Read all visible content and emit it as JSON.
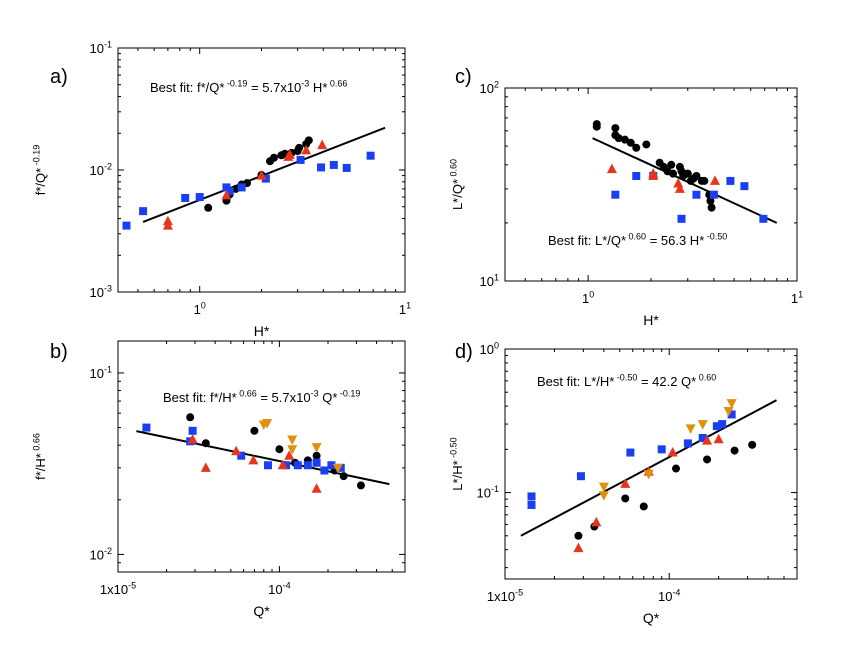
{
  "colors": {
    "black": "#000000",
    "blue": "#1a3ff0",
    "red": "#e8341c",
    "orange": "#e0900a"
  },
  "chart_data": [
    {
      "id": "a",
      "type": "scatter",
      "panel_label": "a)",
      "xscale": "log",
      "yscale": "log",
      "xlim": [
        0.4,
        10
      ],
      "ylim": [
        0.001,
        0.1
      ],
      "xticks": [
        {
          "v": 1,
          "m": "1",
          "e": "0"
        },
        {
          "v": 10,
          "m": "1",
          "e": "1"
        }
      ],
      "yticks": [
        {
          "v": 0.001,
          "m": "10",
          "e": "-3"
        },
        {
          "v": 0.01,
          "m": "10",
          "e": "-2"
        },
        {
          "v": 0.1,
          "m": "10",
          "e": "-1"
        }
      ],
      "xlabel": "H*",
      "ylabel_base": "f*/Q*",
      "ylabel_exp": " -0.19",
      "annotation": {
        "prefix": "Best fit: f*/Q*",
        "e1": " -0.19",
        "mid": " = 5.7x10",
        "e2": "-3",
        "mid2": " H*",
        "e3": " 0.66",
        "suffix": ""
      },
      "fit_line": [
        [
          0.53,
          0.00375
        ],
        [
          8.0,
          0.0222
        ]
      ],
      "series": [
        {
          "name": "black",
          "marker": "circle",
          "color": "black",
          "points": [
            [
              1.1,
              0.0049
            ],
            [
              1.35,
              0.0056
            ],
            [
              1.4,
              0.0063
            ],
            [
              1.5,
              0.007
            ],
            [
              1.6,
              0.0076
            ],
            [
              1.7,
              0.0078
            ],
            [
              2.0,
              0.0091
            ],
            [
              2.2,
              0.0118
            ],
            [
              2.3,
              0.0126
            ],
            [
              2.5,
              0.0132
            ],
            [
              2.6,
              0.0136
            ],
            [
              2.8,
              0.0138
            ],
            [
              3.0,
              0.0143
            ],
            [
              3.05,
              0.0152
            ],
            [
              3.3,
              0.0163
            ],
            [
              3.4,
              0.0175
            ]
          ]
        },
        {
          "name": "blue",
          "marker": "square",
          "color": "blue",
          "points": [
            [
              0.44,
              0.0035
            ],
            [
              0.53,
              0.0046
            ],
            [
              0.85,
              0.0059
            ],
            [
              1.0,
              0.006
            ],
            [
              1.35,
              0.0072
            ],
            [
              1.4,
              0.0067
            ],
            [
              1.6,
              0.0072
            ],
            [
              2.1,
              0.0085
            ],
            [
              3.1,
              0.0121
            ],
            [
              3.9,
              0.0105
            ],
            [
              4.5,
              0.011
            ],
            [
              5.2,
              0.0104
            ],
            [
              6.8,
              0.0131
            ]
          ]
        },
        {
          "name": "red",
          "marker": "triangle-up",
          "color": "red",
          "points": [
            [
              0.7,
              0.0035
            ],
            [
              0.7,
              0.0038
            ],
            [
              1.35,
              0.0062
            ],
            [
              2.0,
              0.009
            ],
            [
              2.7,
              0.0128
            ],
            [
              2.75,
              0.0133
            ],
            [
              3.3,
              0.0145
            ],
            [
              3.95,
              0.016
            ]
          ]
        }
      ]
    },
    {
      "id": "c",
      "type": "scatter",
      "panel_label": "c)",
      "xscale": "log",
      "yscale": "log",
      "xlim": [
        0.4,
        10
      ],
      "ylim": [
        10,
        100
      ],
      "xticks": [
        {
          "v": 1,
          "m": "1",
          "e": "0"
        },
        {
          "v": 10,
          "m": "1",
          "e": "1"
        }
      ],
      "yticks": [
        {
          "v": 10,
          "m": "10",
          "e": "1"
        },
        {
          "v": 100,
          "m": "10",
          "e": "2"
        }
      ],
      "xlabel": "H*",
      "ylabel_base": "L*/Q*",
      "ylabel_exp": " 0.60",
      "annotation": {
        "prefix": "Best fit: L*/Q*",
        "e1": " 0.60",
        "mid": " = 56.3 H*",
        "e2": " -0.50",
        "mid2": "",
        "e3": "",
        "suffix": ""
      },
      "fit_line": [
        [
          1.05,
          55.0
        ],
        [
          8.0,
          20.0
        ]
      ],
      "series": [
        {
          "name": "black",
          "marker": "circle",
          "color": "black",
          "points": [
            [
              1.1,
              65
            ],
            [
              1.1,
              63
            ],
            [
              1.35,
              62
            ],
            [
              1.35,
              57
            ],
            [
              1.4,
              55
            ],
            [
              1.5,
              54
            ],
            [
              1.6,
              52
            ],
            [
              1.7,
              49
            ],
            [
              1.9,
              51
            ],
            [
              2.2,
              41
            ],
            [
              2.3,
              39
            ],
            [
              2.4,
              37
            ],
            [
              2.5,
              40
            ],
            [
              2.55,
              36
            ],
            [
              2.75,
              39
            ],
            [
              2.8,
              37
            ],
            [
              2.85,
              35
            ],
            [
              3.0,
              36
            ],
            [
              3.1,
              33
            ],
            [
              3.2,
              34
            ],
            [
              3.3,
              35
            ],
            [
              3.5,
              33
            ],
            [
              3.6,
              33
            ],
            [
              3.8,
              28
            ],
            [
              3.85,
              26
            ],
            [
              3.9,
              24
            ]
          ]
        },
        {
          "name": "blue",
          "marker": "square",
          "color": "blue",
          "points": [
            [
              1.35,
              28
            ],
            [
              1.7,
              35
            ],
            [
              2.05,
              35
            ],
            [
              2.8,
              21
            ],
            [
              3.3,
              28
            ],
            [
              4.0,
              28
            ],
            [
              4.8,
              33
            ],
            [
              5.6,
              31
            ],
            [
              6.9,
              21
            ]
          ]
        },
        {
          "name": "red",
          "marker": "triangle-up",
          "color": "red",
          "points": [
            [
              1.3,
              38
            ],
            [
              2.05,
              36
            ],
            [
              2.05,
              35
            ],
            [
              2.7,
              32
            ],
            [
              2.75,
              30
            ],
            [
              4.05,
              33
            ]
          ]
        }
      ]
    },
    {
      "id": "b",
      "type": "scatter",
      "panel_label": "b)",
      "xscale": "log",
      "yscale": "log",
      "xlim": [
        1e-05,
        0.0006
      ],
      "ylim": [
        0.008,
        0.15
      ],
      "xticks": [
        {
          "v": 1e-05,
          "m": "1x10",
          "e": "-5"
        },
        {
          "v": 0.0001,
          "m": "10",
          "e": "-4"
        }
      ],
      "yticks": [
        {
          "v": 0.01,
          "m": "10",
          "e": "-2"
        },
        {
          "v": 0.1,
          "m": "10",
          "e": "-1"
        }
      ],
      "xlabel": "Q*",
      "ylabel_base": "f*/H*",
      "ylabel_exp": " 0.66",
      "annotation": {
        "prefix": "Best fit: f*/H*",
        "e1": " 0.66",
        "mid": " = 5.7x10",
        "e2": "-3",
        "mid2": " Q*",
        "e3": " -0.19",
        "suffix": ""
      },
      "fit_line": [
        [
          1.3e-05,
          0.0478
        ],
        [
          0.00048,
          0.0244
        ]
      ],
      "series": [
        {
          "name": "black",
          "marker": "circle",
          "color": "black",
          "points": [
            [
              2.8e-05,
              0.057
            ],
            [
              3.5e-05,
              0.041
            ],
            [
              7e-05,
              0.048
            ],
            [
              0.0001,
              0.038
            ],
            [
              0.000125,
              0.032
            ],
            [
              0.00015,
              0.033
            ],
            [
              0.00017,
              0.035
            ],
            [
              0.00022,
              0.029
            ],
            [
              0.00025,
              0.027
            ],
            [
              0.00032,
              0.024
            ]
          ]
        },
        {
          "name": "blue",
          "marker": "square",
          "color": "blue",
          "points": [
            [
              1.5e-05,
              0.05
            ],
            [
              2.8e-05,
              0.042
            ],
            [
              2.9e-05,
              0.048
            ],
            [
              5.8e-05,
              0.035
            ],
            [
              8.5e-05,
              0.031
            ],
            [
              0.00011,
              0.031
            ],
            [
              0.00013,
              0.031
            ],
            [
              0.00015,
              0.031
            ],
            [
              0.00017,
              0.032
            ],
            [
              0.00019,
              0.029
            ],
            [
              0.00021,
              0.031
            ],
            [
              0.00024,
              0.03
            ]
          ]
        },
        {
          "name": "red",
          "marker": "triangle-up",
          "color": "red",
          "points": [
            [
              2.9e-05,
              0.043
            ],
            [
              3.5e-05,
              0.03
            ],
            [
              5.4e-05,
              0.037
            ],
            [
              6.9e-05,
              0.033
            ],
            [
              0.000105,
              0.031
            ],
            [
              0.000115,
              0.035
            ],
            [
              0.00017,
              0.023
            ]
          ]
        },
        {
          "name": "orange",
          "marker": "triangle-down",
          "color": "orange",
          "points": [
            [
              8e-05,
              0.052
            ],
            [
              8.4e-05,
              0.053
            ],
            [
              0.00012,
              0.043
            ],
            [
              0.00012,
              0.038
            ],
            [
              0.00017,
              0.039
            ],
            [
              0.00023,
              0.03
            ]
          ]
        }
      ]
    },
    {
      "id": "d",
      "type": "scatter",
      "panel_label": "d)",
      "xscale": "log",
      "yscale": "log",
      "xlim": [
        1e-05,
        0.0006
      ],
      "ylim": [
        0.025,
        1
      ],
      "xticks": [
        {
          "v": 1e-05,
          "m": "1x10",
          "e": "-5"
        },
        {
          "v": 0.0001,
          "m": "10",
          "e": "-4"
        }
      ],
      "yticks": [
        {
          "v": 0.1,
          "m": "10",
          "e": "-1"
        },
        {
          "v": 1,
          "m": "10",
          "e": "0"
        }
      ],
      "xlabel": "Q*",
      "ylabel_base": "L*/H*",
      "ylabel_exp": " -0.50",
      "annotation": {
        "prefix": "Best fit: L*/H*",
        "e1": " -0.50",
        "mid": " = 42.2 Q*",
        "e2": " 0.60",
        "mid2": "",
        "e3": "",
        "suffix": ""
      },
      "fit_line": [
        [
          1.25e-05,
          0.05
        ],
        [
          0.00045,
          0.44
        ]
      ],
      "series": [
        {
          "name": "black",
          "marker": "circle",
          "color": "black",
          "points": [
            [
              2.8e-05,
              0.05
            ],
            [
              3.5e-05,
              0.058
            ],
            [
              5.4e-05,
              0.091
            ],
            [
              7e-05,
              0.08
            ],
            [
              0.00011,
              0.147
            ],
            [
              0.00017,
              0.17
            ],
            [
              0.00025,
              0.196
            ],
            [
              0.00032,
              0.215
            ]
          ]
        },
        {
          "name": "blue",
          "marker": "square",
          "color": "blue",
          "points": [
            [
              1.45e-05,
              0.082
            ],
            [
              1.45e-05,
              0.094
            ],
            [
              2.9e-05,
              0.13
            ],
            [
              5.8e-05,
              0.19
            ],
            [
              9e-05,
              0.2
            ],
            [
              0.00013,
              0.22
            ],
            [
              0.00016,
              0.24
            ],
            [
              0.000195,
              0.29
            ],
            [
              0.00021,
              0.3
            ],
            [
              0.00024,
              0.35
            ]
          ]
        },
        {
          "name": "red",
          "marker": "triangle-up",
          "color": "red",
          "points": [
            [
              2.8e-05,
              0.041
            ],
            [
              3.6e-05,
              0.062
            ],
            [
              5.4e-05,
              0.115
            ],
            [
              7.5e-05,
              0.14
            ],
            [
              0.000105,
              0.19
            ],
            [
              0.00017,
              0.23
            ],
            [
              0.0002,
              0.235
            ]
          ]
        },
        {
          "name": "orange",
          "marker": "triangle-down",
          "color": "orange",
          "points": [
            [
              4e-05,
              0.11
            ],
            [
              4e-05,
              0.096
            ],
            [
              7.5e-05,
              0.135
            ],
            [
              0.000135,
              0.28
            ],
            [
              0.00016,
              0.3
            ],
            [
              0.00023,
              0.37
            ],
            [
              0.00024,
              0.42
            ]
          ]
        }
      ]
    }
  ]
}
